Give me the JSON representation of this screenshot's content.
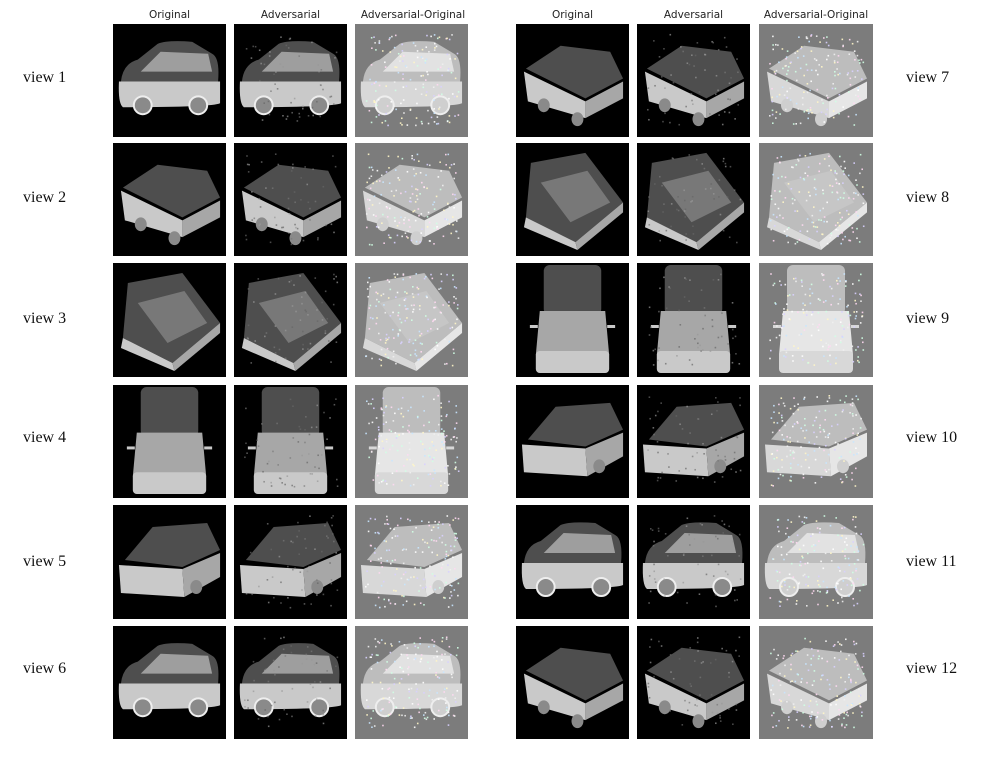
{
  "left_headers": [
    "Original",
    "Adversarial",
    "Adversarial-Original"
  ],
  "right_headers": [
    "Original",
    "Adversarial",
    "Adversarial-Original"
  ],
  "left_views": [
    "view 1",
    "view 2",
    "view 3",
    "view 4",
    "view 5",
    "view 6"
  ],
  "right_views": [
    "view 7",
    "view 8",
    "view 9",
    "view 10",
    "view 11",
    "view 12"
  ],
  "colors": {
    "original_background": "#000000",
    "difference_background": "#7c7c7c",
    "car_body": "#c8c8c8",
    "car_roof": "#5a5a5a"
  }
}
